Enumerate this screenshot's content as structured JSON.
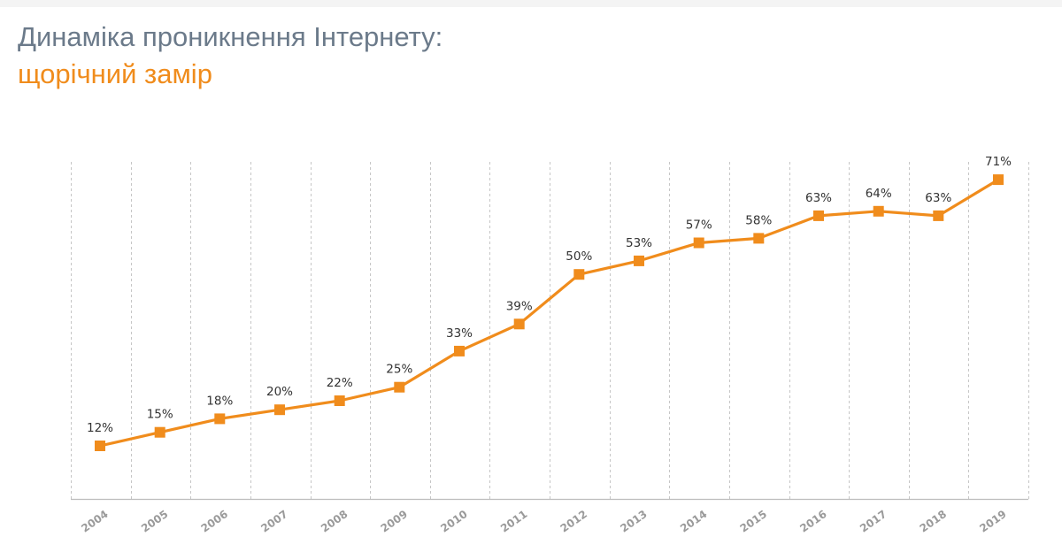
{
  "title": {
    "line1": "Динаміка проникнення Інтернету:",
    "line2": "щорічний замір"
  },
  "colors": {
    "title": "#6b7a8a",
    "subtitle": "#f08c1c",
    "series": "#f08c1c",
    "grid": "#c6c6c6",
    "tick_labels": "#9a9a9a",
    "data_labels": "#333333"
  },
  "chart_data": {
    "type": "line",
    "categories": [
      "2004",
      "2005",
      "2006",
      "2007",
      "2008",
      "2009",
      "2010",
      "2011",
      "2012",
      "2013",
      "2014",
      "2015",
      "2016",
      "2017",
      "2018",
      "2019"
    ],
    "values": [
      12,
      15,
      18,
      20,
      22,
      25,
      33,
      39,
      50,
      53,
      57,
      58,
      63,
      64,
      63,
      71
    ],
    "value_labels": [
      "12%",
      "15%",
      "18%",
      "20%",
      "22%",
      "25%",
      "33%",
      "39%",
      "50%",
      "53%",
      "57%",
      "58%",
      "63%",
      "64%",
      "63%",
      "71%"
    ],
    "marker": "square",
    "grid": "vertical dashed",
    "tick_label_rotation": "diagonal"
  }
}
